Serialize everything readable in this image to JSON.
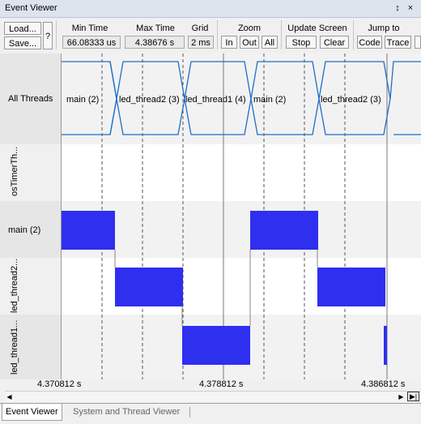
{
  "window": {
    "title": "Event Viewer",
    "pin_glyph": "↕",
    "close_glyph": "×"
  },
  "toolbar": {
    "load_label": "Load...",
    "save_label": "Save...",
    "help_label": "?",
    "min_time": {
      "header": "Min Time",
      "value": "66.08333 us"
    },
    "max_time": {
      "header": "Max Time",
      "value": "4.38676 s"
    },
    "grid": {
      "header": "Grid",
      "value": "2 ms"
    },
    "zoom": {
      "header": "Zoom",
      "in_label": "In",
      "out_label": "Out",
      "all_label": "All"
    },
    "update_screen": {
      "header": "Update Screen",
      "stop_label": "Stop",
      "clear_label": "Clear"
    },
    "jump_to": {
      "header": "Jump to",
      "code_label": "Code",
      "trace_label": "Trace"
    }
  },
  "rows": [
    {
      "label": "All Threads"
    },
    {
      "label": "osTimerTh..."
    },
    {
      "label": "main (2)"
    },
    {
      "label": "led_thread2..."
    },
    {
      "label": "led_thread1..."
    }
  ],
  "all_threads_segments": [
    {
      "label": "main (2)"
    },
    {
      "label": "led_thread2 (3)"
    },
    {
      "label": "led_thread1 (4)"
    },
    {
      "label": "main (2)"
    },
    {
      "label": "led_thread2 (3)"
    }
  ],
  "time_axis": {
    "ticks": [
      "4.370812 s",
      "4.378812 s",
      "4.386812 s"
    ]
  },
  "tabs": [
    {
      "label": "Event Viewer",
      "active": true
    },
    {
      "label": "System and Thread Viewer",
      "active": false
    }
  ],
  "colors": {
    "accent_blue": "#2f2ff0",
    "bus_line": "#1e6fc8"
  }
}
